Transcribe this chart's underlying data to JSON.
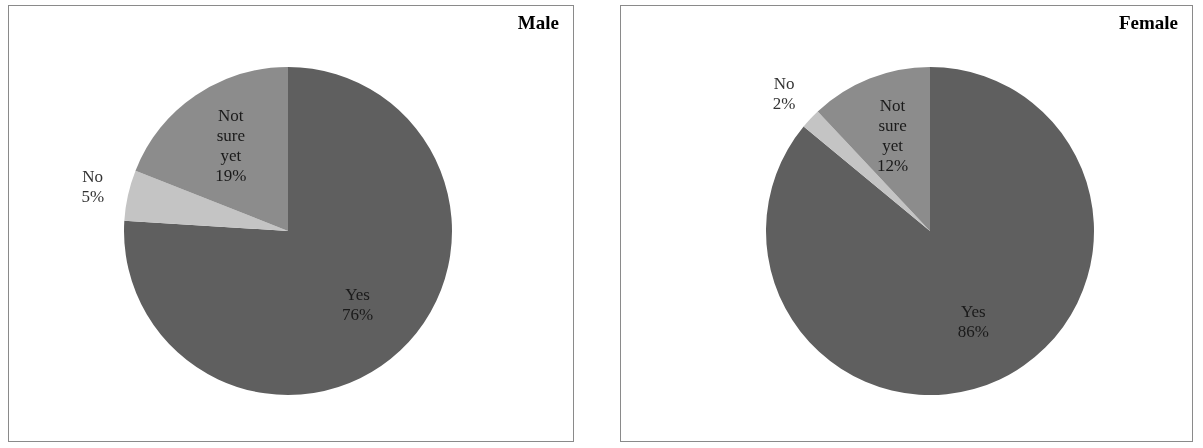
{
  "chart_data": [
    {
      "type": "pie",
      "title": "Male",
      "categories": [
        "Yes",
        "No",
        "Not sure yet"
      ],
      "values": [
        76,
        5,
        19
      ],
      "value_labels": [
        "76%",
        "5%",
        "19%"
      ],
      "colors": [
        "#5f5f5f",
        "#c4c4c4",
        "#8c8c8c"
      ],
      "legend": false
    },
    {
      "type": "pie",
      "title": "Female",
      "categories": [
        "Yes",
        "No",
        "Not sure yet"
      ],
      "values": [
        86,
        2,
        12
      ],
      "value_labels": [
        "86%",
        "2%",
        "12%"
      ],
      "colors": [
        "#5f5f5f",
        "#c4c4c4",
        "#8c8c8c"
      ],
      "legend": false
    }
  ]
}
